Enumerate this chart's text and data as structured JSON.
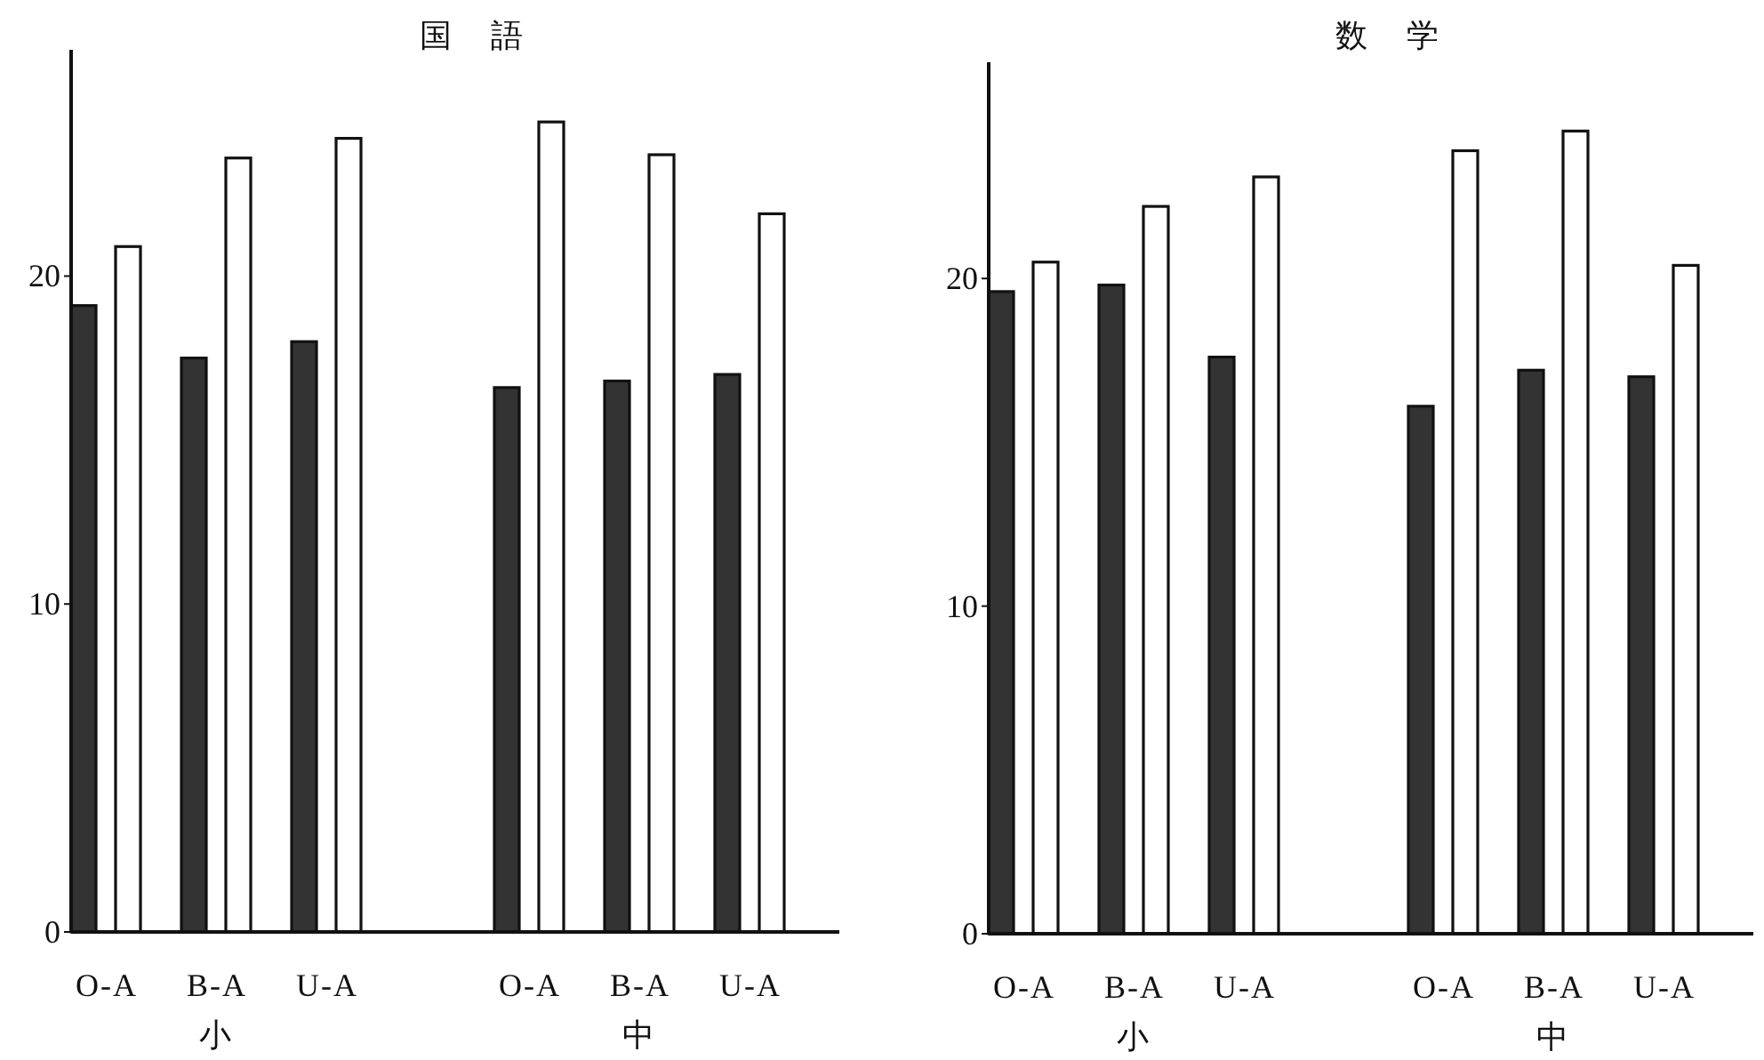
{
  "chart_data": [
    {
      "type": "bar",
      "title": "国語",
      "categories": [
        "O-A",
        "B-A",
        "U-A",
        "O-A",
        "B-A",
        "U-A"
      ],
      "series": [
        {
          "color": "#333333",
          "values": [
            19.1,
            17.5,
            18.0,
            16.6,
            16.8,
            17.0
          ]
        },
        {
          "color": "#ffffff",
          "values": [
            20.9,
            23.6,
            24.2,
            24.7,
            23.7,
            21.9
          ]
        }
      ],
      "ylim": [
        0,
        26.9
      ],
      "yticks": [
        0,
        10,
        20
      ],
      "annotations": [
        "小",
        "中"
      ]
    },
    {
      "type": "bar",
      "title": "数学",
      "categories": [
        "O-A",
        "B-A",
        "U-A",
        "O-A",
        "B-A",
        "U-A"
      ],
      "series": [
        {
          "color": "#333333",
          "values": [
            19.6,
            19.8,
            17.6,
            16.1,
            17.2,
            17.0
          ]
        },
        {
          "color": "#ffffff",
          "values": [
            20.5,
            22.2,
            23.1,
            23.9,
            24.5,
            20.4
          ]
        }
      ],
      "ylim": [
        0,
        26.6
      ],
      "yticks": [
        0,
        10,
        20
      ],
      "annotations": [
        "小",
        "中"
      ]
    }
  ]
}
